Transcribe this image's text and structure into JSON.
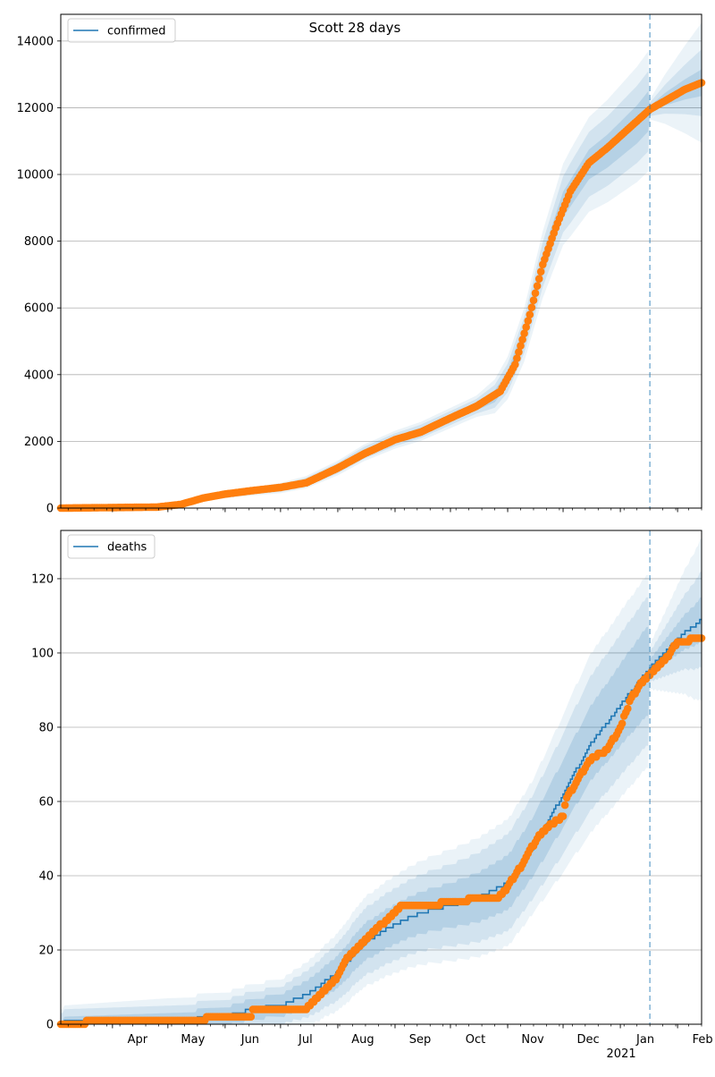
{
  "figure": {
    "title": "Scott 28 days"
  },
  "x_axis": {
    "start": "2020-03-04",
    "end": "2021-02-14",
    "month_ticks": [
      {
        "date": "2020-04-01",
        "label": "Apr",
        "sub": ""
      },
      {
        "date": "2020-05-01",
        "label": "May",
        "sub": ""
      },
      {
        "date": "2020-06-01",
        "label": "Jun",
        "sub": ""
      },
      {
        "date": "2020-07-01",
        "label": "Jul",
        "sub": ""
      },
      {
        "date": "2020-08-01",
        "label": "Aug",
        "sub": ""
      },
      {
        "date": "2020-09-01",
        "label": "Sep",
        "sub": ""
      },
      {
        "date": "2020-10-01",
        "label": "Oct",
        "sub": ""
      },
      {
        "date": "2020-11-01",
        "label": "Nov",
        "sub": ""
      },
      {
        "date": "2020-12-01",
        "label": "Dec",
        "sub": ""
      },
      {
        "date": "2021-01-01",
        "label": "Jan",
        "sub": "2021"
      },
      {
        "date": "2021-02-01",
        "label": "Feb",
        "sub": ""
      }
    ],
    "forecast_start": "2021-01-17"
  },
  "colors": {
    "model_line": "#1f77b4",
    "observed": "#ff7f0e",
    "band": "#1f77b4",
    "grid": "#b0b0b0",
    "forecast_line": "#1f77b4"
  },
  "chart_data": [
    {
      "type": "line",
      "legend": "confirmed",
      "legend_position": "top-left",
      "ylim": [
        0,
        14800
      ],
      "yticks": [
        0,
        2000,
        4000,
        6000,
        8000,
        10000,
        12000,
        14000
      ],
      "grid": true,
      "model_anchors": [
        [
          "2020-03-04",
          0
        ],
        [
          "2020-04-10",
          15
        ],
        [
          "2020-04-25",
          40
        ],
        [
          "2020-05-05",
          80
        ],
        [
          "2020-05-15",
          200
        ],
        [
          "2020-05-25",
          330
        ],
        [
          "2020-06-10",
          460
        ],
        [
          "2020-07-01",
          600
        ],
        [
          "2020-07-15",
          780
        ],
        [
          "2020-08-01",
          1200
        ],
        [
          "2020-08-15",
          1650
        ],
        [
          "2020-09-01",
          2050
        ],
        [
          "2020-09-15",
          2300
        ],
        [
          "2020-10-01",
          2700
        ],
        [
          "2020-10-15",
          3050
        ],
        [
          "2020-10-25",
          3350
        ],
        [
          "2020-11-01",
          3900
        ],
        [
          "2020-11-10",
          5200
        ],
        [
          "2020-11-20",
          7300
        ],
        [
          "2020-12-01",
          9100
        ],
        [
          "2020-12-15",
          10300
        ],
        [
          "2020-12-25",
          10700
        ],
        [
          "2021-01-10",
          11500
        ],
        [
          "2021-01-17",
          11950
        ],
        [
          "2021-01-25",
          12250
        ],
        [
          "2021-02-05",
          12550
        ],
        [
          "2021-02-14",
          12750
        ]
      ],
      "band_widths": [
        [
          "2020-03-04",
          0,
          0,
          0
        ],
        [
          "2020-06-01",
          30,
          60,
          90
        ],
        [
          "2020-08-15",
          100,
          180,
          250
        ],
        [
          "2020-10-15",
          120,
          220,
          320
        ],
        [
          "2020-11-15",
          300,
          600,
          900
        ],
        [
          "2020-12-05",
          400,
          900,
          1300
        ],
        [
          "2021-01-16",
          600,
          1200,
          1800
        ],
        [
          "2021-01-17",
          100,
          200,
          300
        ],
        [
          "2021-02-14",
          400,
          1000,
          1800
        ]
      ],
      "observed": [
        [
          "2020-03-04",
          0
        ],
        [
          "2020-04-25",
          30
        ],
        [
          "2020-05-08",
          110
        ],
        [
          "2020-05-20",
          300
        ],
        [
          "2020-06-01",
          420
        ],
        [
          "2020-06-15",
          520
        ],
        [
          "2020-07-01",
          620
        ],
        [
          "2020-07-15",
          760
        ],
        [
          "2020-08-01",
          1200
        ],
        [
          "2020-08-15",
          1620
        ],
        [
          "2020-09-01",
          2050
        ],
        [
          "2020-09-15",
          2280
        ],
        [
          "2020-10-01",
          2700
        ],
        [
          "2020-10-15",
          3050
        ],
        [
          "2020-10-28",
          3500
        ],
        [
          "2020-11-05",
          4300
        ],
        [
          "2020-11-13",
          5800
        ],
        [
          "2020-11-20",
          7300
        ],
        [
          "2020-11-27",
          8400
        ],
        [
          "2020-12-05",
          9500
        ],
        [
          "2020-12-15",
          10350
        ],
        [
          "2020-12-25",
          10800
        ],
        [
          "2021-01-10",
          11600
        ],
        [
          "2021-01-17",
          11950
        ],
        [
          "2021-01-25",
          12200
        ],
        [
          "2021-02-05",
          12550
        ],
        [
          "2021-02-14",
          12750
        ]
      ]
    },
    {
      "type": "line",
      "legend": "deaths",
      "legend_position": "top-left",
      "ylim": [
        0,
        133
      ],
      "yticks": [
        0,
        20,
        40,
        60,
        80,
        100,
        120
      ],
      "grid": true,
      "model_anchors": [
        [
          "2020-03-04",
          0
        ],
        [
          "2020-03-07",
          1
        ],
        [
          "2020-04-01",
          1
        ],
        [
          "2020-05-01",
          1
        ],
        [
          "2020-06-01",
          2
        ],
        [
          "2020-06-15",
          4
        ],
        [
          "2020-07-01",
          5
        ],
        [
          "2020-07-15",
          8
        ],
        [
          "2020-08-01",
          14
        ],
        [
          "2020-08-15",
          22
        ],
        [
          "2020-09-01",
          27
        ],
        [
          "2020-09-15",
          30
        ],
        [
          "2020-10-01",
          32
        ],
        [
          "2020-10-15",
          34
        ],
        [
          "2020-11-01",
          38
        ],
        [
          "2020-11-15",
          48
        ],
        [
          "2020-12-01",
          62
        ],
        [
          "2020-12-15",
          75
        ],
        [
          "2021-01-01",
          86
        ],
        [
          "2021-01-17",
          96
        ],
        [
          "2021-02-01",
          104
        ],
        [
          "2021-02-14",
          109
        ]
      ],
      "band_widths": [
        [
          "2020-03-04",
          1,
          3,
          4
        ],
        [
          "2020-05-01",
          2,
          4,
          6
        ],
        [
          "2020-07-01",
          3,
          5,
          7
        ],
        [
          "2020-08-15",
          5,
          9,
          12
        ],
        [
          "2020-10-01",
          6,
          11,
          15
        ],
        [
          "2020-11-15",
          8,
          14,
          18
        ],
        [
          "2020-12-15",
          10,
          18,
          24
        ],
        [
          "2021-01-16",
          12,
          20,
          26
        ],
        [
          "2021-01-17",
          2,
          4,
          6
        ],
        [
          "2021-02-14",
          6,
          13,
          22
        ]
      ],
      "observed": [
        [
          "2020-03-04",
          0
        ],
        [
          "2020-04-01",
          1
        ],
        [
          "2020-05-21",
          1
        ],
        [
          "2020-05-22",
          2
        ],
        [
          "2020-06-15",
          2
        ],
        [
          "2020-06-16",
          4
        ],
        [
          "2020-07-15",
          4
        ],
        [
          "2020-07-20",
          7
        ],
        [
          "2020-07-25",
          9
        ],
        [
          "2020-08-01",
          13
        ],
        [
          "2020-08-05",
          17
        ],
        [
          "2020-08-15",
          22
        ],
        [
          "2020-08-25",
          27
        ],
        [
          "2020-09-01",
          30
        ],
        [
          "2020-09-05",
          32
        ],
        [
          "2020-09-25",
          32
        ],
        [
          "2020-09-26",
          33
        ],
        [
          "2020-10-10",
          33
        ],
        [
          "2020-10-11",
          34
        ],
        [
          "2020-10-27",
          34
        ],
        [
          "2020-11-01",
          37
        ],
        [
          "2020-11-10",
          44
        ],
        [
          "2020-11-18",
          51
        ],
        [
          "2020-11-25",
          54
        ],
        [
          "2020-12-01",
          56
        ],
        [
          "2020-12-03",
          61
        ],
        [
          "2020-12-08",
          65
        ],
        [
          "2020-12-15",
          71
        ],
        [
          "2020-12-25",
          74
        ],
        [
          "2021-01-01",
          80
        ],
        [
          "2021-01-07",
          88
        ],
        [
          "2021-01-14",
          93
        ],
        [
          "2021-01-21",
          96
        ],
        [
          "2021-01-28",
          100
        ],
        [
          "2021-02-01",
          103
        ],
        [
          "2021-02-14",
          104
        ]
      ]
    }
  ]
}
